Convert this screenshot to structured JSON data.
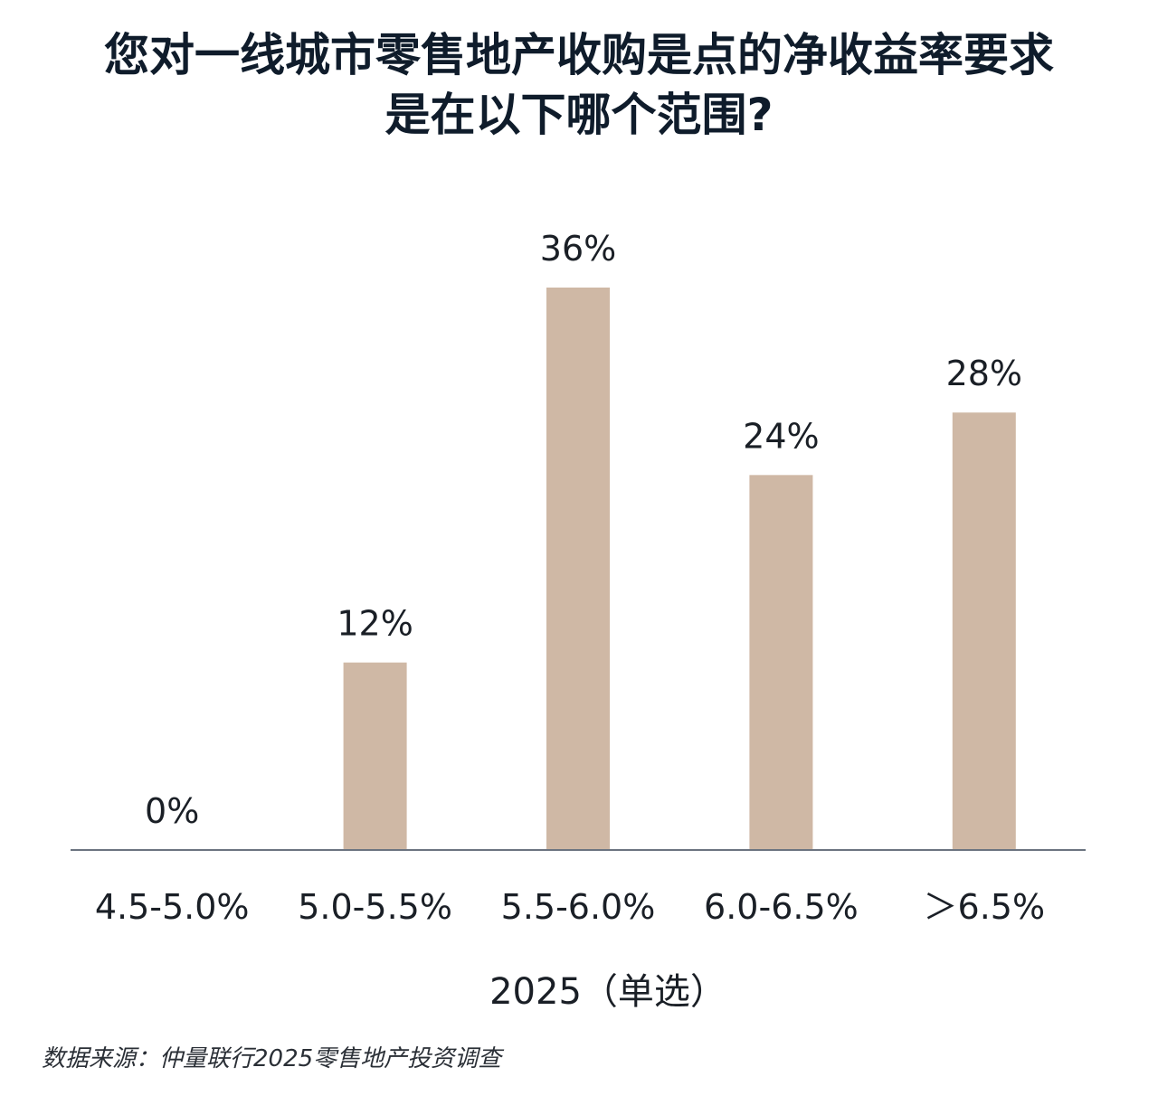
{
  "chart_data": {
    "type": "bar",
    "title_lines": [
      "您对一线城市零售地产收购是点的净收益率要求",
      "是在以下哪个范围?"
    ],
    "categories": [
      "4.5-5.0%",
      "5.0-5.5%",
      "5.5-6.0%",
      "6.0-6.5%",
      "＞6.5%"
    ],
    "values": [
      0,
      12,
      36,
      24,
      28
    ],
    "data_labels": [
      "0%",
      "12%",
      "36%",
      "24%",
      "28%"
    ],
    "xlabel": "2025（单选）",
    "ylabel": "",
    "ylim": [
      0,
      36
    ],
    "grid": false,
    "bar_color": "#cfb8a5",
    "axis_color": "#6b7480"
  },
  "footer": {
    "source": "数据来源：仲量联行2025零售地产投资调查"
  }
}
